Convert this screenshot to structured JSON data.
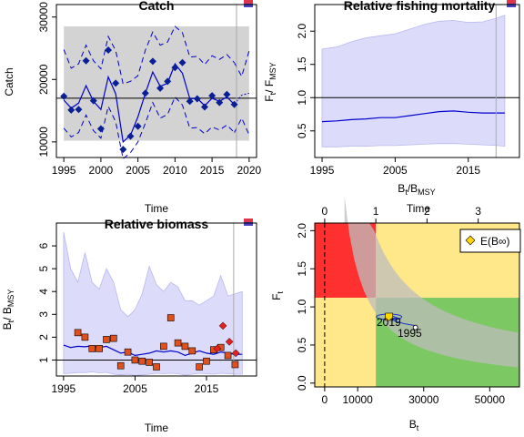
{
  "figure_name": "spict results panels",
  "chart_data": [
    {
      "id": "catch",
      "type": "line",
      "title": "Catch",
      "xlabel": "Time",
      "ylabel": "Catch",
      "xlim": [
        1994,
        2021
      ],
      "ylim": [
        7500,
        32000
      ],
      "xticks": [
        1995,
        2000,
        2005,
        2010,
        2015,
        2020
      ],
      "yticks": [
        10000,
        20000,
        30000
      ],
      "msy_band": [
        10200,
        28500
      ],
      "msy_line": 17000,
      "vline_x": 2018.3,
      "observed": {
        "x": [
          1995,
          1996,
          1997,
          1998,
          1999,
          2000,
          2001,
          2002,
          2003,
          2004,
          2005,
          2006,
          2007,
          2008,
          2009,
          2010,
          2011,
          2012,
          2013,
          2014,
          2015,
          2016,
          2017,
          2018
        ],
        "y": [
          17300,
          15100,
          15200,
          23000,
          16600,
          12100,
          24700,
          19400,
          8800,
          10900,
          12500,
          17800,
          22900,
          18600,
          19700,
          21900,
          22700,
          16500,
          16900,
          15600,
          17400,
          16300,
          17600,
          16000
        ]
      },
      "fit": {
        "x": [
          1995,
          1996,
          1997,
          1998,
          1999,
          2000,
          2001,
          2002,
          2003,
          2004,
          2005,
          2006,
          2007,
          2008,
          2009,
          2010,
          2011,
          2012,
          2013,
          2014,
          2015,
          2016,
          2017,
          2018
        ],
        "y": [
          16700,
          15400,
          16200,
          19000,
          16500,
          15200,
          20400,
          17700,
          10000,
          11100,
          14000,
          17800,
          21200,
          18900,
          19400,
          22500,
          21000,
          16900,
          17000,
          15800,
          17000,
          16500,
          17200,
          16000
        ]
      },
      "ci_upper": [
        24800,
        21800,
        22500,
        25500,
        23000,
        21700,
        26900,
        24600,
        19300,
        19700,
        20600,
        24700,
        27600,
        25500,
        26000,
        28500,
        27500,
        23600,
        23700,
        22400,
        23800,
        23200,
        24000,
        22700
      ],
      "ci_lower": [
        12200,
        10800,
        11500,
        14300,
        11800,
        10600,
        15700,
        13200,
        7300,
        8300,
        10000,
        13000,
        16300,
        13800,
        14400,
        17200,
        15900,
        12200,
        12300,
        11300,
        12400,
        11900,
        12700,
        11500
      ],
      "forecast": {
        "x": [
          2018,
          2019,
          2020
        ],
        "y": [
          16000,
          17500,
          17800
        ],
        "ci_upper": [
          22700,
          20500,
          24600
        ],
        "ci_lower": [
          11500,
          13800,
          11100
        ]
      }
    },
    {
      "id": "fishing-mortality",
      "type": "line",
      "title": "Relative fishing mortality",
      "xlabel": "Time",
      "ylabel": "Ft/FMSY",
      "xlim": [
        1994,
        2022
      ],
      "ylim": [
        0.1,
        2.4
      ],
      "xticks": [
        1995,
        2005,
        2015
      ],
      "yticks": [
        0.5,
        1.0,
        1.5,
        2.0
      ],
      "reference_line": 1.0,
      "vline_x": 2018.8,
      "x": [
        1995,
        1997,
        1999,
        2001,
        2003,
        2005,
        2007,
        2009,
        2011,
        2013,
        2015,
        2017,
        2019,
        2020
      ],
      "estimate": [
        0.64,
        0.65,
        0.67,
        0.68,
        0.7,
        0.7,
        0.73,
        0.76,
        0.79,
        0.8,
        0.78,
        0.77,
        0.77,
        0.77
      ],
      "ci_upper": [
        1.73,
        1.76,
        1.84,
        1.9,
        1.93,
        1.96,
        2.03,
        2.1,
        2.15,
        2.16,
        2.13,
        2.14,
        2.2,
        2.24
      ],
      "ci_lower": [
        0.26,
        0.26,
        0.27,
        0.27,
        0.28,
        0.28,
        0.29,
        0.3,
        0.31,
        0.31,
        0.3,
        0.29,
        0.28,
        0.27
      ]
    },
    {
      "id": "biomass",
      "type": "line",
      "title": "Relative biomass",
      "xlabel": "Time",
      "ylabel": "Bt/BMSY",
      "xlim": [
        1994,
        2022
      ],
      "ylim": [
        0.3,
        7.0
      ],
      "xticks": [
        1995,
        2005,
        2015
      ],
      "yticks": [
        1,
        2,
        3,
        4,
        5,
        6
      ],
      "reference_line": 1.0,
      "vline_x": 2018.8,
      "x": [
        1995,
        1996,
        1997,
        1998,
        1999,
        2000,
        2001,
        2002,
        2003,
        2004,
        2005,
        2006,
        2007,
        2008,
        2009,
        2010,
        2011,
        2012,
        2013,
        2014,
        2015,
        2016,
        2017,
        2018,
        2019,
        2020
      ],
      "estimate": [
        1.65,
        1.55,
        1.6,
        1.58,
        1.62,
        1.55,
        1.6,
        1.45,
        1.3,
        1.35,
        1.2,
        1.25,
        1.3,
        1.4,
        1.35,
        1.4,
        1.35,
        1.2,
        1.3,
        1.4,
        1.3,
        1.25,
        1.35,
        1.3,
        1.25,
        1.25
      ],
      "ci_upper": [
        6.6,
        5.0,
        4.4,
        5.7,
        4.4,
        4.1,
        5.0,
        4.4,
        3.2,
        2.9,
        3.2,
        3.9,
        5.1,
        4.3,
        4.0,
        4.4,
        4.2,
        3.6,
        3.6,
        3.4,
        3.6,
        3.8,
        4.7,
        3.8,
        3.9,
        4.0
      ],
      "ci_lower": [
        0.4,
        0.42,
        0.45,
        0.45,
        0.48,
        0.44,
        0.46,
        0.38,
        0.35,
        0.38,
        0.32,
        0.35,
        0.38,
        0.42,
        0.4,
        0.42,
        0.4,
        0.34,
        0.38,
        0.42,
        0.4,
        0.38,
        0.42,
        0.4,
        0.38,
        0.38
      ],
      "obs_squares": {
        "x": [
          1997,
          1998,
          1999,
          2000,
          2001,
          2002,
          2003,
          2004,
          2005,
          2006,
          2007,
          2008,
          2009,
          2010,
          2011,
          2012,
          2013,
          2014,
          2015,
          2016,
          2017,
          2018,
          2019
        ],
        "y": [
          2.2,
          2.0,
          1.5,
          1.5,
          1.9,
          1.95,
          0.75,
          1.35,
          1.0,
          0.95,
          0.9,
          0.7,
          1.6,
          2.85,
          1.75,
          1.6,
          1.4,
          0.7,
          0.95,
          1.45,
          1.55,
          1.2,
          0.8
        ]
      },
      "obs_diamonds": {
        "x": [
          2016.5,
          2017.3,
          2018.2,
          2019.1
        ],
        "y": [
          1.5,
          2.5,
          1.8,
          1.3
        ]
      }
    },
    {
      "id": "kobe",
      "type": "scatter",
      "xlabel": "Bt",
      "ylabel": "Ft",
      "top_axis_label": "Bt/BMSY",
      "xlim": [
        -3000,
        59000
      ],
      "ylim": [
        -0.05,
        2.1
      ],
      "xticks": [
        0,
        10000,
        30000,
        50000
      ],
      "xtick_labels": [
        "0",
        "10000",
        "30000",
        "50000"
      ],
      "top_ticks": [
        0,
        1,
        2,
        3
      ],
      "yticks": [
        0.0,
        0.5,
        1.0,
        1.5,
        2.0
      ],
      "bmsy": 15500,
      "fmsy": 1.12,
      "zone_colors": {
        "red": "#ff3030",
        "yellow": "#ffe88a",
        "green": "#7cc862",
        "gray_band": "#bdbdbd",
        "trajectory": "#1a35c8",
        "current_marker": "#ffd700"
      },
      "trajectory_points": [
        [
          28000,
          0.75
        ],
        [
          24000,
          0.78
        ],
        [
          21000,
          0.82
        ],
        [
          19500,
          0.86
        ],
        [
          23000,
          0.84
        ],
        [
          20500,
          0.88
        ],
        [
          18500,
          0.87
        ],
        [
          22000,
          0.83
        ],
        [
          20000,
          0.85
        ],
        [
          19000,
          0.86
        ]
      ],
      "current_point": [
        19500,
        0.87
      ],
      "start_point": [
        27500,
        0.73
      ],
      "label_2019": "2019",
      "label_1995": "1995",
      "legend_label": "E(B∞)"
    }
  ]
}
